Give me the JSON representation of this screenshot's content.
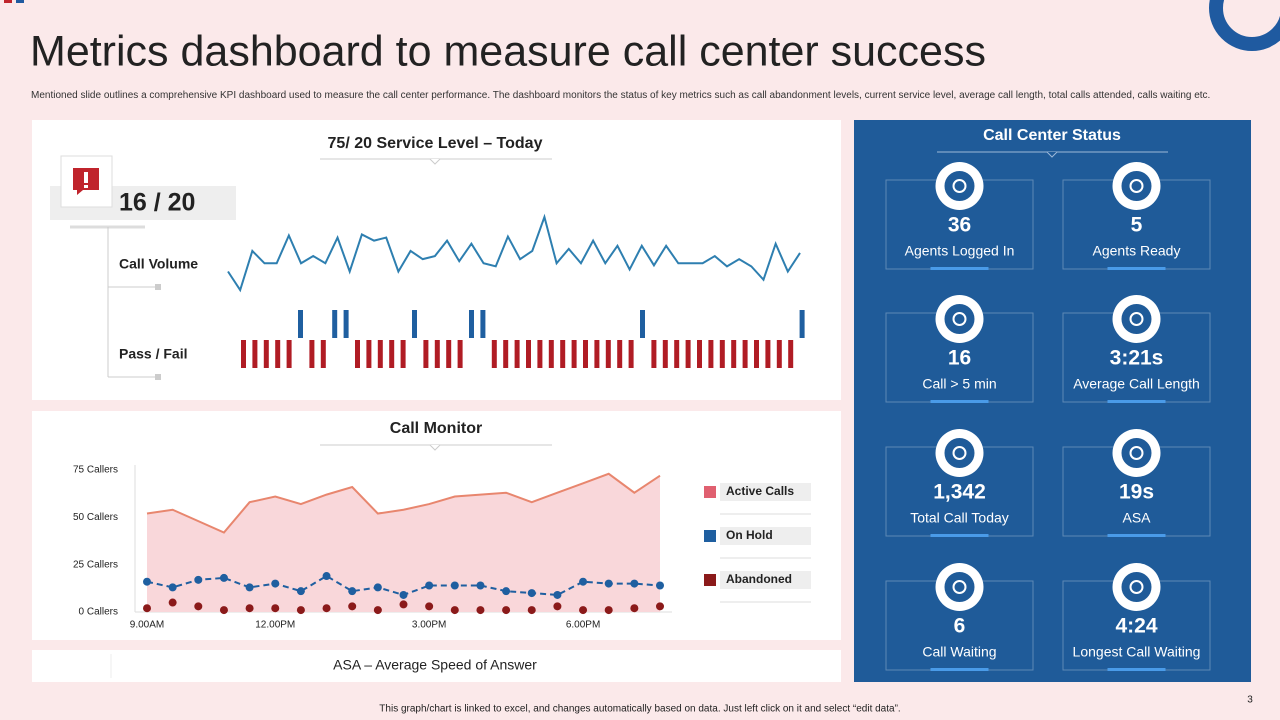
{
  "header": {
    "title": "Metrics dashboard to measure call center success",
    "description": "Mentioned slide outlines a comprehensive KPI dashboard used to measure the call center performance. The dashboard monitors the status of key metrics such as call abandonment levels, current service level, average call length, total calls attended, calls waiting etc."
  },
  "service_level": {
    "title": "75/ 20 Service Level – Today",
    "score": "16 / 20"
  },
  "chart_data": [
    {
      "type": "line",
      "name": "Call Volume",
      "color": "#2e7fb0",
      "values": [
        30,
        12,
        50,
        38,
        38,
        65,
        38,
        45,
        38,
        63,
        30,
        66,
        60,
        63,
        30,
        50,
        42,
        45,
        60,
        40,
        57,
        38,
        35,
        64,
        42,
        50,
        83,
        38,
        52,
        38,
        60,
        38,
        55,
        32,
        55,
        36,
        55,
        38,
        38,
        38,
        45,
        35,
        42,
        35,
        22,
        57,
        30,
        48
      ]
    },
    {
      "type": "pass_fail",
      "name": "Pass / Fail",
      "pass_color": "#1f5fa0",
      "fail_color": "#b01c24",
      "values": [
        0,
        0,
        0,
        0,
        0,
        1,
        0,
        0,
        1,
        1,
        0,
        0,
        0,
        0,
        0,
        1,
        0,
        0,
        0,
        0,
        1,
        1,
        0,
        0,
        0,
        0,
        0,
        0,
        0,
        0,
        0,
        0,
        0,
        0,
        0,
        1,
        0,
        0,
        0,
        0,
        0,
        0,
        0,
        0,
        0,
        0,
        0,
        0,
        0,
        1
      ]
    },
    {
      "type": "area_line",
      "title": "Call Monitor",
      "categories": [
        "9.00AM",
        null,
        null,
        null,
        null,
        "12.00PM",
        null,
        null,
        null,
        null,
        null,
        "3.00PM",
        null,
        null,
        null,
        null,
        null,
        "6.00PM",
        null,
        null,
        null
      ],
      "ylim": [
        0,
        75
      ],
      "yticks": [
        {
          "value": 0,
          "label": "0 Callers"
        },
        {
          "value": 25,
          "label": "25 Callers"
        },
        {
          "value": 50,
          "label": "50 Callers"
        },
        {
          "value": 75,
          "label": "75 Callers"
        }
      ],
      "series": [
        {
          "name": "Active Calls",
          "color": "#e06070",
          "values": [
            52,
            54,
            48,
            42,
            58,
            61,
            57,
            62,
            66,
            52,
            54,
            57,
            61,
            62,
            63,
            58,
            63,
            68,
            73,
            63,
            72
          ]
        },
        {
          "name": "On Hold",
          "color": "#1f5fa0",
          "values": [
            16,
            13,
            17,
            18,
            13,
            15,
            11,
            19,
            11,
            13,
            9,
            14,
            14,
            14,
            11,
            10,
            9,
            16,
            15,
            15,
            14
          ]
        },
        {
          "name": "Abandoned",
          "color": "#8b1a1a",
          "values": [
            2,
            5,
            3,
            1,
            2,
            2,
            1,
            2,
            3,
            1,
            4,
            3,
            1,
            1,
            1,
            1,
            3,
            1,
            1,
            2,
            3
          ]
        }
      ]
    }
  ],
  "asa_panel": {
    "title": "ASA – Average Speed of Answer"
  },
  "status": {
    "title": "Call Center Status",
    "tiles": [
      {
        "value": "36",
        "label": "Agents Logged In"
      },
      {
        "value": "5",
        "label": "Agents Ready"
      },
      {
        "value": "16",
        "label": "Call > 5 min"
      },
      {
        "value": "3:21s",
        "label": "Average  Call Length"
      },
      {
        "value": "1,342",
        "label": "Total Call Today"
      },
      {
        "value": "19s",
        "label": "ASA"
      },
      {
        "value": "6",
        "label": "Call Waiting"
      },
      {
        "value": "4:24",
        "label": "Longest Call Waiting"
      }
    ]
  },
  "footer": {
    "note": "This graph/chart is linked to excel, and changes automatically based on data. Just left click on it and select “edit data”.",
    "page": "3"
  }
}
